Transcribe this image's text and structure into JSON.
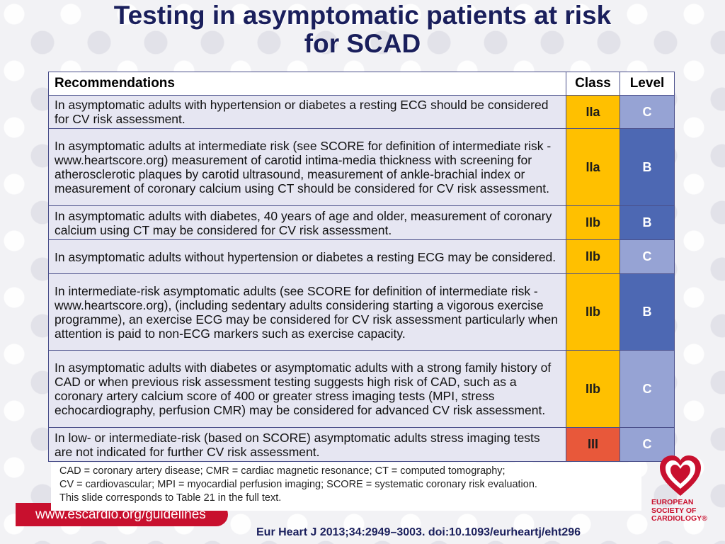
{
  "title": {
    "line1": "Testing in asymptomatic patients at risk",
    "line2": "for SCAD"
  },
  "table": {
    "headers": {
      "recommendations": "Recommendations",
      "class": "Class",
      "level": "Level"
    },
    "rows": [
      {
        "text": "In asymptomatic adults with hypertension or diabetes a resting ECG should be considered for CV risk assessment.",
        "class": "IIa",
        "level": "C"
      },
      {
        "text": "In asymptomatic adults at intermediate risk (see SCORE for definition of intermediate risk - www.heartscore.org) measurement of carotid intima-media thickness with screening for atherosclerotic plaques by carotid ultrasound, measurement of ankle-brachial index or measurement of coronary calcium using CT should be considered for CV risk assessment.",
        "class": "IIa",
        "level": "B"
      },
      {
        "text": "In asymptomatic adults with diabetes, 40 years of age and older, measurement of coronary calcium using CT may be considered for CV risk assessment.",
        "class": "IIb",
        "level": "B"
      },
      {
        "text": "In asymptomatic adults without hypertension or diabetes a resting ECG may be considered.",
        "class": "IIb",
        "level": "C"
      },
      {
        "text": "In intermediate-risk asymptomatic adults (see SCORE for definition of intermediate risk - www.heartscore.org), (including sedentary adults considering starting a vigorous exercise programme), an exercise ECG may be considered for CV risk assessment particularly when attention is paid to non-ECG markers such as exercise capacity.",
        "class": "IIb",
        "level": "B"
      },
      {
        "text": "In asymptomatic adults with diabetes or asymptomatic adults with a strong family history of CAD or when previous risk assessment testing suggests high risk of CAD, such as a coronary artery calcium score of 400 or greater stress imaging tests (MPI, stress echocardiography, perfusion CMR) may be considered for advanced CV risk assessment.",
        "class": "IIb",
        "level": "C"
      },
      {
        "text": "In low- or intermediate-risk (based on SCORE) asymptomatic adults stress imaging tests are not indicated for further CV risk assessment.",
        "class": "III",
        "level": "C"
      }
    ]
  },
  "footnote": {
    "line1": "CAD = coronary artery disease; CMR = cardiac magnetic resonance; CT = computed tomography;",
    "line2": "CV = cardiovascular; MPI = myocardial perfusion imaging; SCORE = systematic coronary risk evaluation.",
    "line3": "This slide corresponds to Table 21 in the full text."
  },
  "url": "www.escardio.org/guidelines",
  "citation": "Eur Heart J  2013;34:2949–3003. doi:10.1093/eurheartj/eht296",
  "logo": {
    "line1": "EUROPEAN",
    "line2": "SOCIETY OF",
    "line3": "CARDIOLOGY®"
  },
  "colors": {
    "title": "#1a1f5c",
    "class_IIa_IIb": "#ffc000",
    "class_III": "#e8583a",
    "level_B": "#4d68b3",
    "level_C": "#96a3d4",
    "brand_red": "#c8102e"
  }
}
